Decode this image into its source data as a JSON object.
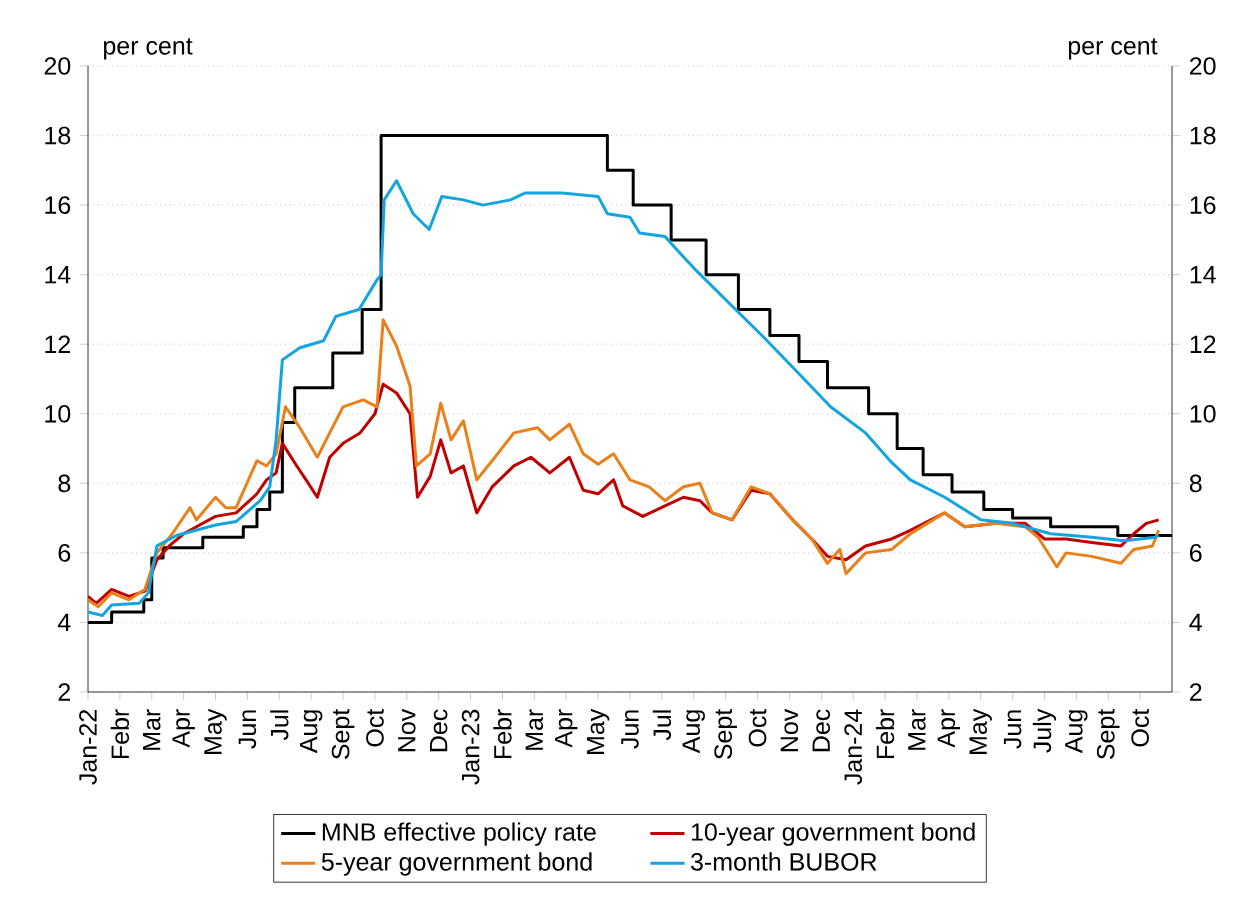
{
  "chart_data": {
    "type": "line",
    "annotations": [
      "per cent",
      "per cent"
    ],
    "xlim": [
      "2022-01-01",
      "2024-11-01"
    ],
    "ylim": [
      2,
      20
    ],
    "yticks": [
      2,
      4,
      6,
      8,
      10,
      12,
      14,
      16,
      18,
      20
    ],
    "y2lim": [
      2,
      20
    ],
    "y2ticks": [
      2,
      4,
      6,
      8,
      10,
      12,
      14,
      16,
      18,
      20
    ],
    "xticks": [
      {
        "value": "2022-01",
        "label": "Jan-22"
      },
      {
        "value": "2022-02",
        "label": "Febr"
      },
      {
        "value": "2022-03",
        "label": "Mar"
      },
      {
        "value": "2022-04",
        "label": "Apr"
      },
      {
        "value": "2022-05",
        "label": "May"
      },
      {
        "value": "2022-06",
        "label": "Jun"
      },
      {
        "value": "2022-07",
        "label": "Jul"
      },
      {
        "value": "2022-08",
        "label": "Aug"
      },
      {
        "value": "2022-09",
        "label": "Sept"
      },
      {
        "value": "2022-10",
        "label": "Oct"
      },
      {
        "value": "2022-11",
        "label": "Nov"
      },
      {
        "value": "2022-12",
        "label": "Dec"
      },
      {
        "value": "2023-01",
        "label": "Jan-23"
      },
      {
        "value": "2023-02",
        "label": "Febr"
      },
      {
        "value": "2023-03",
        "label": "Mar"
      },
      {
        "value": "2023-04",
        "label": "Apr"
      },
      {
        "value": "2023-05",
        "label": "May"
      },
      {
        "value": "2023-06",
        "label": "Jun"
      },
      {
        "value": "2023-07",
        "label": "Jul"
      },
      {
        "value": "2023-08",
        "label": "Aug"
      },
      {
        "value": "2023-09",
        "label": "Sept"
      },
      {
        "value": "2023-10",
        "label": "Oct"
      },
      {
        "value": "2023-11",
        "label": "Nov"
      },
      {
        "value": "2023-12",
        "label": "Dec"
      },
      {
        "value": "2024-01",
        "label": "Jan-24"
      },
      {
        "value": "2024-02",
        "label": "Febr"
      },
      {
        "value": "2024-03",
        "label": "Mar"
      },
      {
        "value": "2024-04",
        "label": "Apr"
      },
      {
        "value": "2024-05",
        "label": "May"
      },
      {
        "value": "2024-06",
        "label": "Jun"
      },
      {
        "value": "2024-07",
        "label": "July"
      },
      {
        "value": "2024-08",
        "label": "Aug"
      },
      {
        "value": "2024-09",
        "label": "Sept"
      },
      {
        "value": "2024-10",
        "label": "Oct"
      }
    ],
    "grid": "y",
    "legend": "bottom",
    "marker": "none",
    "line_style": "solid",
    "series": [
      {
        "name": "MNB effective policy rate",
        "type": "step",
        "color": "#000000",
        "x": [
          "2022-01-01",
          "2022-01-24",
          "2022-02-22",
          "2022-03-01",
          "2022-03-12",
          "2022-04-19",
          "2022-05-28",
          "2022-06-10",
          "2022-06-22",
          "2022-07-04",
          "2022-07-16",
          "2022-08-22",
          "2022-09-19",
          "2022-10-07",
          "2023-05-10",
          "2023-06-04",
          "2023-07-10",
          "2023-08-13",
          "2023-09-13",
          "2023-10-13",
          "2023-11-10",
          "2023-12-07",
          "2024-01-16",
          "2024-02-12",
          "2024-03-07",
          "2024-04-04",
          "2024-05-04",
          "2024-06-01",
          "2024-07-07",
          "2024-09-10",
          "2024-11-01"
        ],
        "values": [
          4.0,
          4.3,
          4.65,
          5.85,
          6.15,
          6.45,
          6.75,
          7.25,
          7.75,
          9.75,
          10.75,
          11.75,
          13.0,
          18.0,
          17.0,
          16.0,
          15.0,
          14.0,
          13.0,
          12.25,
          11.5,
          10.75,
          10.0,
          9.0,
          8.25,
          7.75,
          7.25,
          7.0,
          6.75,
          6.5,
          6.5
        ]
      },
      {
        "name": "10-year government bond",
        "type": "line",
        "color": "#c00000",
        "x": [
          "2022-01-01",
          "2022-01-09",
          "2022-01-24",
          "2022-02-09",
          "2022-02-23",
          "2022-03-06",
          "2022-03-18",
          "2022-04-01",
          "2022-04-13",
          "2022-05-01",
          "2022-05-21",
          "2022-06-10",
          "2022-06-19",
          "2022-06-28",
          "2022-07-04",
          "2022-07-18",
          "2022-07-27",
          "2022-08-07",
          "2022-08-19",
          "2022-09-01",
          "2022-09-17",
          "2022-10-01",
          "2022-10-09",
          "2022-10-22",
          "2022-11-04",
          "2022-11-11",
          "2022-11-23",
          "2022-12-03",
          "2022-12-13",
          "2022-12-25",
          "2023-01-07",
          "2023-01-22",
          "2023-02-11",
          "2023-02-26",
          "2023-03-16",
          "2023-04-04",
          "2023-04-17",
          "2023-05-01",
          "2023-05-16",
          "2023-05-25",
          "2023-06-13",
          "2023-07-04",
          "2023-07-22",
          "2023-08-07",
          "2023-08-19",
          "2023-09-07",
          "2023-09-25",
          "2023-10-13",
          "2023-11-04",
          "2023-11-22",
          "2023-12-07",
          "2023-12-25",
          "2024-01-13",
          "2024-02-07",
          "2024-02-24",
          "2024-03-28",
          "2024-04-16",
          "2024-05-16",
          "2024-06-13",
          "2024-07-01",
          "2024-07-22",
          "2024-08-16",
          "2024-09-13",
          "2024-09-25",
          "2024-10-07",
          "2024-10-19"
        ],
        "values": [
          4.75,
          4.55,
          4.95,
          4.75,
          4.9,
          5.8,
          6.2,
          6.55,
          6.75,
          7.05,
          7.15,
          7.7,
          8.1,
          8.3,
          9.15,
          8.5,
          8.1,
          7.6,
          8.75,
          9.15,
          9.45,
          10.0,
          10.85,
          10.6,
          10.0,
          7.6,
          8.2,
          9.25,
          8.3,
          8.5,
          7.15,
          7.9,
          8.5,
          8.75,
          8.3,
          8.75,
          7.8,
          7.7,
          8.1,
          7.35,
          7.05,
          7.35,
          7.6,
          7.5,
          7.15,
          6.95,
          7.8,
          7.7,
          6.95,
          6.4,
          5.9,
          5.8,
          6.2,
          6.4,
          6.65,
          7.15,
          6.75,
          6.85,
          6.85,
          6.4,
          6.4,
          6.3,
          6.2,
          6.55,
          6.85,
          6.95
        ]
      },
      {
        "name": "5-year government bond",
        "type": "line",
        "color": "#e9811b",
        "x": [
          "2022-01-01",
          "2022-01-11",
          "2022-01-24",
          "2022-02-09",
          "2022-02-23",
          "2022-03-06",
          "2022-03-21",
          "2022-04-07",
          "2022-04-13",
          "2022-05-01",
          "2022-05-11",
          "2022-05-21",
          "2022-06-10",
          "2022-06-19",
          "2022-06-28",
          "2022-07-07",
          "2022-07-21",
          "2022-08-07",
          "2022-08-19",
          "2022-09-01",
          "2022-09-20",
          "2022-10-03",
          "2022-10-09",
          "2022-10-22",
          "2022-11-04",
          "2022-11-10",
          "2022-11-23",
          "2022-12-03",
          "2022-12-13",
          "2022-12-25",
          "2023-01-07",
          "2023-01-22",
          "2023-02-11",
          "2023-03-04",
          "2023-03-16",
          "2023-04-04",
          "2023-04-17",
          "2023-05-01",
          "2023-05-16",
          "2023-06-01",
          "2023-06-19",
          "2023-07-04",
          "2023-07-22",
          "2023-08-07",
          "2023-08-19",
          "2023-09-07",
          "2023-09-25",
          "2023-10-13",
          "2023-11-04",
          "2023-11-22",
          "2023-12-07",
          "2023-12-19",
          "2023-12-25",
          "2024-01-13",
          "2024-02-07",
          "2024-02-24",
          "2024-03-28",
          "2024-04-16",
          "2024-05-16",
          "2024-06-13",
          "2024-06-25",
          "2024-07-13",
          "2024-07-22",
          "2024-08-16",
          "2024-09-13",
          "2024-09-25",
          "2024-10-13",
          "2024-10-19"
        ],
        "values": [
          4.65,
          4.45,
          4.85,
          4.65,
          4.95,
          6.0,
          6.55,
          7.3,
          6.95,
          7.6,
          7.3,
          7.3,
          8.65,
          8.5,
          8.85,
          10.2,
          9.6,
          8.75,
          9.45,
          10.2,
          10.4,
          10.2,
          12.7,
          11.95,
          10.8,
          8.5,
          8.85,
          10.3,
          9.25,
          9.8,
          8.1,
          8.65,
          9.45,
          9.6,
          9.25,
          9.7,
          8.85,
          8.55,
          8.85,
          8.1,
          7.9,
          7.5,
          7.9,
          8.0,
          7.15,
          6.95,
          7.9,
          7.7,
          6.95,
          6.4,
          5.7,
          6.1,
          5.4,
          6.0,
          6.1,
          6.55,
          7.15,
          6.75,
          6.85,
          6.75,
          6.45,
          5.6,
          6.0,
          5.9,
          5.7,
          6.1,
          6.2,
          6.65
        ]
      },
      {
        "name": "3-month BUBOR",
        "type": "line",
        "color": "#14a5e0",
        "x": [
          "2022-01-01",
          "2022-01-15",
          "2022-01-24",
          "2022-02-18",
          "2022-02-26",
          "2022-03-06",
          "2022-03-25",
          "2022-05-01",
          "2022-05-21",
          "2022-06-13",
          "2022-06-22",
          "2022-06-28",
          "2022-07-04",
          "2022-07-21",
          "2022-08-13",
          "2022-08-25",
          "2022-09-16",
          "2022-10-03",
          "2022-10-07",
          "2022-10-10",
          "2022-10-22",
          "2022-11-07",
          "2022-11-22",
          "2022-12-04",
          "2022-12-25",
          "2023-01-13",
          "2023-02-08",
          "2023-02-21",
          "2023-03-28",
          "2023-05-01",
          "2023-05-10",
          "2023-06-01",
          "2023-06-10",
          "2023-07-04",
          "2023-07-16",
          "2023-08-04",
          "2023-09-07",
          "2023-10-07",
          "2023-11-10",
          "2023-12-10",
          "2024-01-13",
          "2024-02-07",
          "2024-02-24",
          "2024-03-28",
          "2024-05-01",
          "2024-06-01",
          "2024-07-07",
          "2024-08-16",
          "2024-09-16",
          "2024-10-16",
          "2024-10-19"
        ],
        "values": [
          4.3,
          4.2,
          4.5,
          4.55,
          4.85,
          6.2,
          6.5,
          6.8,
          6.9,
          7.5,
          7.9,
          9.25,
          11.55,
          11.9,
          12.1,
          12.8,
          13.0,
          13.85,
          14.0,
          16.15,
          16.7,
          15.75,
          15.3,
          16.25,
          16.15,
          16.0,
          16.15,
          16.35,
          16.35,
          16.25,
          15.75,
          15.65,
          15.2,
          15.1,
          14.7,
          14.1,
          13.1,
          12.2,
          11.15,
          10.2,
          9.45,
          8.6,
          8.1,
          7.6,
          6.95,
          6.85,
          6.55,
          6.45,
          6.35,
          6.45,
          6.5
        ]
      }
    ]
  }
}
